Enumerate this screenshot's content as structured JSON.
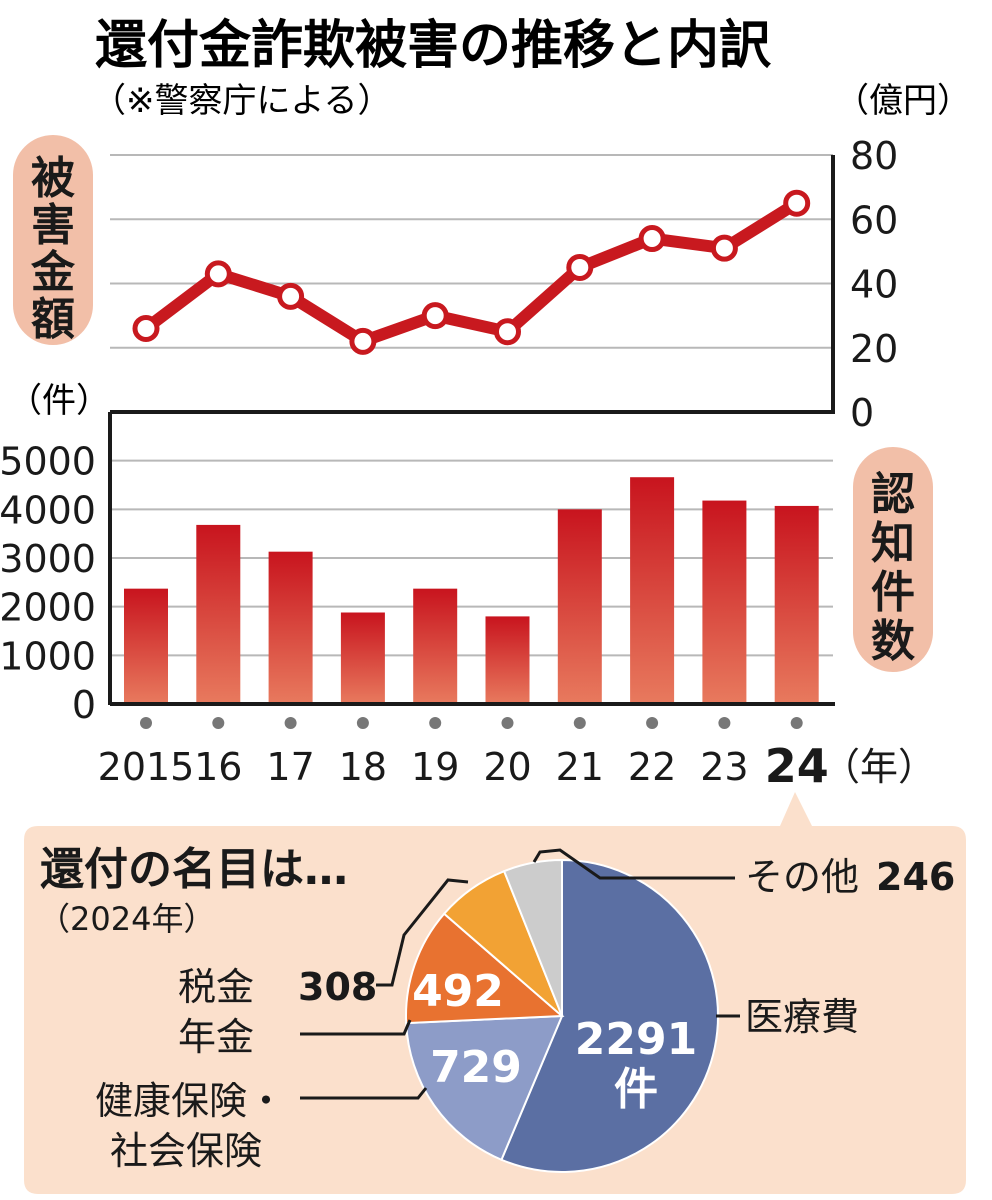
{
  "header": {
    "title": "還付金詐欺被害の推移と内訳",
    "source": "（※警察庁による）"
  },
  "colors": {
    "line": "#c8191f",
    "bar_top": "#c8141e",
    "bar_bottom": "#e87a5e",
    "pill": "#f2bfa8",
    "inset_bg": "#fbe0cc",
    "grid": "#b8b8b8",
    "medical": "#5b6fa3",
    "insurance": "#8d9cc8",
    "pension": "#e87230",
    "tax": "#f2a234",
    "other": "#cccccc"
  },
  "chart_data": [
    {
      "type": "line",
      "panel_label": "被害金額",
      "unit_label": "（億円）",
      "x": [
        "2015",
        "16",
        "17",
        "18",
        "19",
        "20",
        "21",
        "22",
        "23",
        "24"
      ],
      "values": [
        26,
        43,
        36,
        22,
        30,
        25,
        45,
        54,
        51,
        65
      ],
      "ylim": [
        0,
        80
      ],
      "yticks": [
        "80",
        "60",
        "40",
        "20",
        "0"
      ],
      "axis": "right",
      "grid": true
    },
    {
      "type": "bar",
      "panel_label": "認知件数",
      "unit_label": "（件）",
      "categories": [
        "2015",
        "16",
        "17",
        "18",
        "19",
        "20",
        "21",
        "22",
        "23",
        "24"
      ],
      "values": [
        2370,
        3680,
        3130,
        1880,
        2370,
        1800,
        4000,
        4660,
        4180,
        4070
      ],
      "ylim": [
        0,
        5000
      ],
      "yticks": [
        "5000",
        "4000",
        "3000",
        "2000",
        "1000",
        "0"
      ],
      "axis": "left",
      "grid": true,
      "year_suffix": "（年）"
    },
    {
      "type": "pie",
      "title": "還付の名目は…",
      "subtitle": "（2024年）",
      "slices": [
        {
          "label": "医療費",
          "value": 2291,
          "value_text": "2291",
          "unit": "件"
        },
        {
          "label": "健康保険・社会保険",
          "label_lines": [
            "健康保険・",
            "社会保険"
          ],
          "value": 729,
          "value_text": "729"
        },
        {
          "label": "年金",
          "value": 492,
          "value_text": "492"
        },
        {
          "label": "税金",
          "value": 308,
          "value_text": "308"
        },
        {
          "label": "その他",
          "value": 246,
          "value_text": "246"
        }
      ]
    }
  ]
}
